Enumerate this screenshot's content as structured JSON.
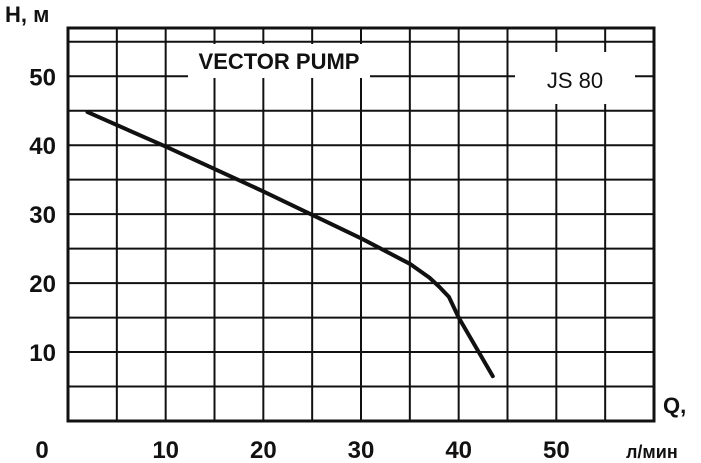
{
  "chart_data": {
    "type": "line",
    "title": "VECTOR PUMP",
    "model": "JS 80",
    "ylabel": "H, м",
    "xlabel": "Q,",
    "xunit": "л/мин",
    "origin_label": "0",
    "x_ticks": [
      10,
      20,
      30,
      40,
      50
    ],
    "y_ticks": [
      10,
      20,
      30,
      40,
      50
    ],
    "xlim": [
      0,
      60
    ],
    "ylim": [
      0,
      57
    ],
    "grid": true,
    "series": [
      {
        "x": [
          2,
          10,
          20,
          30,
          35,
          37,
          38,
          39,
          40,
          43.5
        ],
        "y": [
          44.8,
          39.8,
          33.3,
          26.5,
          22.8,
          20.8,
          19.5,
          18.0,
          15.0,
          6.5
        ]
      }
    ]
  }
}
